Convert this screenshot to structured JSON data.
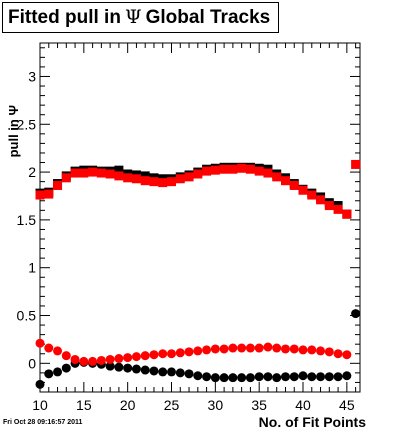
{
  "title": {
    "prefix": "Fitted pull in",
    "symbol": "Ψ",
    "suffix": "Global Tracks"
  },
  "timestamp": "Fri Oct 28 09:16:57 2011",
  "chart_data": {
    "type": "scatter",
    "xlabel": "No. of Fit Points",
    "ylabel": "pull in Ψ",
    "xlim": [
      10,
      46.5
    ],
    "ylim": [
      -0.3,
      3.35
    ],
    "x_ticks": [
      10,
      15,
      20,
      25,
      30,
      35,
      40,
      45
    ],
    "y_ticks": [
      0,
      0.5,
      1,
      1.5,
      2,
      2.5,
      3
    ],
    "x_tick_labels": [
      "10",
      "15",
      "20",
      "25",
      "30",
      "35",
      "40",
      "45"
    ],
    "y_tick_labels": [
      "0",
      "0.5",
      "1",
      "1.5",
      "2",
      "2.5",
      "3"
    ],
    "grid": false,
    "legend": "none",
    "series": [
      {
        "color": "#000000",
        "marker": "square",
        "x": [
          10,
          11,
          12,
          13,
          14,
          15,
          16,
          17,
          18,
          19,
          20,
          21,
          22,
          23,
          24,
          25,
          26,
          27,
          28,
          29,
          30,
          31,
          32,
          33,
          34,
          35,
          36,
          37,
          38,
          39,
          40,
          41,
          42,
          43,
          44,
          45
        ],
        "values": [
          1.78,
          1.79,
          1.88,
          1.96,
          2.01,
          2.02,
          2.02,
          2.01,
          2.01,
          2.02,
          1.98,
          1.97,
          1.96,
          1.94,
          1.93,
          1.93,
          1.95,
          1.97,
          2.0,
          2.03,
          2.04,
          2.05,
          2.05,
          2.05,
          2.05,
          2.04,
          2.03,
          1.98,
          1.94,
          1.88,
          1.82,
          1.78,
          1.74,
          1.68,
          1.65,
          1.56
        ]
      },
      {
        "color": "#ff0000",
        "marker": "square",
        "x": [
          10,
          11,
          12,
          13,
          14,
          15,
          16,
          17,
          18,
          19,
          20,
          21,
          22,
          23,
          24,
          25,
          26,
          27,
          28,
          29,
          30,
          31,
          32,
          33,
          34,
          35,
          36,
          37,
          38,
          39,
          40,
          41,
          42,
          43,
          44,
          45,
          46
        ],
        "values": [
          1.76,
          1.77,
          1.86,
          1.94,
          1.99,
          1.99,
          2.0,
          1.99,
          1.98,
          1.96,
          1.94,
          1.93,
          1.91,
          1.9,
          1.89,
          1.9,
          1.93,
          1.95,
          1.98,
          2.01,
          2.02,
          2.03,
          2.03,
          2.04,
          2.03,
          2.01,
          1.99,
          1.95,
          1.91,
          1.86,
          1.81,
          1.76,
          1.71,
          1.65,
          1.61,
          1.56,
          2.08
        ]
      },
      {
        "color": "#000000",
        "marker": "circle",
        "x": [
          10,
          11,
          12,
          13,
          14,
          15,
          16,
          17,
          18,
          19,
          20,
          21,
          22,
          23,
          24,
          25,
          26,
          27,
          28,
          29,
          30,
          31,
          32,
          33,
          34,
          35,
          36,
          37,
          38,
          39,
          40,
          41,
          42,
          43,
          44,
          45,
          46
        ],
        "values": [
          -0.22,
          -0.11,
          -0.09,
          -0.05,
          0.0,
          0.01,
          0.0,
          -0.01,
          -0.03,
          -0.04,
          -0.05,
          -0.06,
          -0.07,
          -0.08,
          -0.09,
          -0.09,
          -0.1,
          -0.11,
          -0.13,
          -0.14,
          -0.15,
          -0.15,
          -0.15,
          -0.15,
          -0.15,
          -0.14,
          -0.14,
          -0.15,
          -0.14,
          -0.14,
          -0.13,
          -0.14,
          -0.14,
          -0.14,
          -0.14,
          -0.13,
          0.52
        ]
      },
      {
        "color": "#ff0000",
        "marker": "circle",
        "x": [
          10,
          11,
          12,
          13,
          14,
          15,
          16,
          17,
          18,
          19,
          20,
          21,
          22,
          23,
          24,
          25,
          26,
          27,
          28,
          29,
          30,
          31,
          32,
          33,
          34,
          35,
          36,
          37,
          38,
          39,
          40,
          41,
          42,
          43,
          44,
          45
        ],
        "values": [
          0.21,
          0.16,
          0.13,
          0.08,
          0.04,
          0.02,
          0.02,
          0.03,
          0.04,
          0.05,
          0.06,
          0.07,
          0.08,
          0.09,
          0.1,
          0.1,
          0.11,
          0.12,
          0.13,
          0.14,
          0.15,
          0.15,
          0.16,
          0.16,
          0.16,
          0.16,
          0.17,
          0.16,
          0.15,
          0.15,
          0.14,
          0.14,
          0.13,
          0.12,
          0.1,
          0.09
        ]
      }
    ]
  }
}
